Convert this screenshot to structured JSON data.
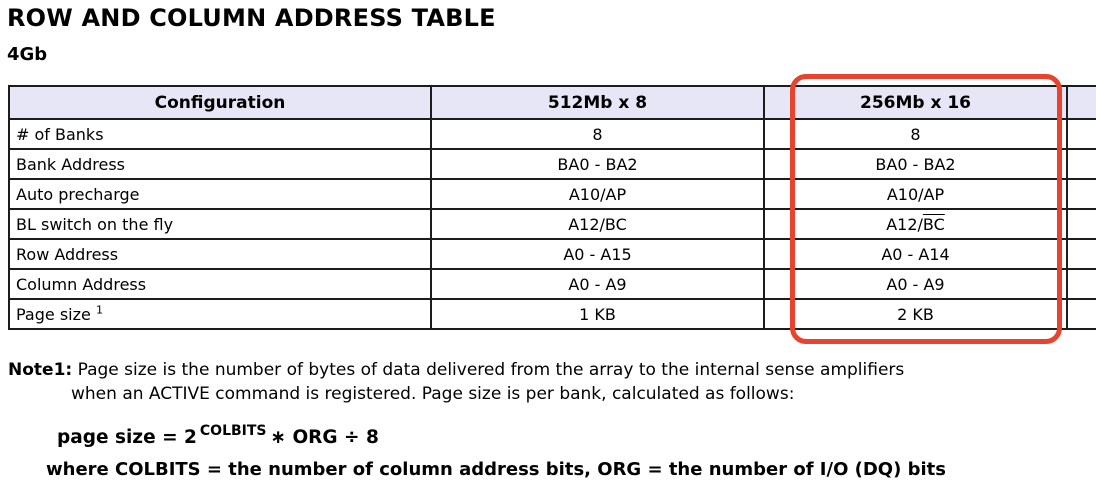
{
  "page": {
    "title": "ROW AND COLUMN ADDRESS TABLE",
    "subtitle": "4Gb"
  },
  "table": {
    "columns": [
      "Configuration",
      "512Mb x 8",
      "256Mb x 16",
      ""
    ],
    "rows": [
      {
        "label": "# of Banks",
        "c1": "8",
        "c2": "8"
      },
      {
        "label": "Bank Address",
        "c1": "BA0 - BA2",
        "c2": "BA0 - BA2"
      },
      {
        "label": "Auto precharge",
        "c1": "A10/AP",
        "c2": "A10/AP"
      },
      {
        "label": "BL switch on the fly",
        "c1": "A12/BC",
        "c2_pre": "A12/",
        "c2_over": "BC"
      },
      {
        "label": "Row Address",
        "c1": "A0 - A15",
        "c2": "A0 - A14"
      },
      {
        "label": "Column Address",
        "c1": "A0 - A9",
        "c2": "A0 - A9"
      },
      {
        "label": "Page size",
        "label_sup": "1",
        "c1": "1 KB",
        "c2": "2 KB"
      }
    ]
  },
  "highlight": {
    "color": "#e8432f",
    "target": "256Mb x 16 column"
  },
  "note": {
    "label": "Note1:",
    "line1": "Page size is the number of bytes of data delivered from the array to the internal sense amplifiers",
    "line2": "when an ACTIVE command is registered. Page size is per bank, calculated as follows:",
    "formula": {
      "prefix": "page size = 2",
      "sup": "COLBITS",
      "suffix": "∗ ORG ÷ 8"
    },
    "where": "where COLBITS = the number of column address bits, ORG = the number of I/O (DQ) bits"
  }
}
